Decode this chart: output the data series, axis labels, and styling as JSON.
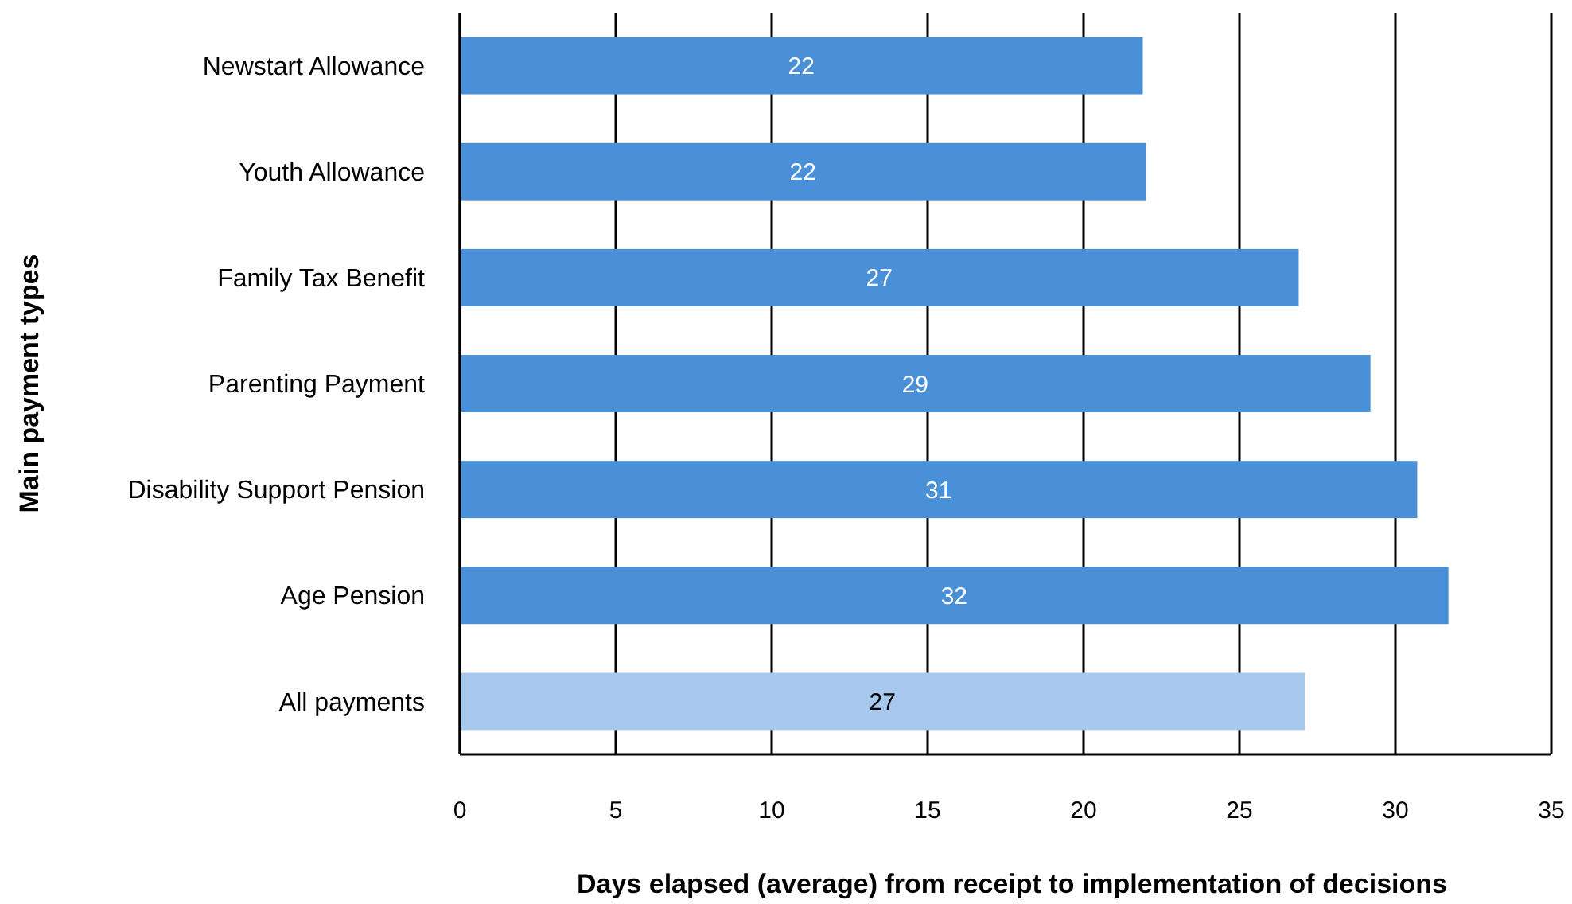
{
  "chart_data": {
    "type": "bar",
    "orientation": "horizontal",
    "xlabel": "Days elapsed (average) from receipt to implementation of decisions",
    "ylabel": "Main payment types",
    "categories": [
      "Newstart Allowance",
      "Youth Allowance",
      "Family Tax Benefit",
      "Parenting Payment",
      "Disability Support Pension",
      "Age Pension",
      "All payments"
    ],
    "values": [
      21.9,
      22,
      26.9,
      29.2,
      30.7,
      31.7,
      27.1
    ],
    "colors": [
      "#4a90d9",
      "#4a90d9",
      "#4a90d9",
      "#4a90d9",
      "#4a90d9",
      "#4a90d9",
      "#a5c8ec"
    ],
    "value_labels": [
      "22",
      "22",
      "27",
      "29",
      "31",
      "32",
      "27"
    ],
    "xlim": [
      0,
      35
    ],
    "xticks": [
      0,
      5,
      10,
      15,
      20,
      25,
      30,
      35
    ],
    "grid": "x"
  }
}
